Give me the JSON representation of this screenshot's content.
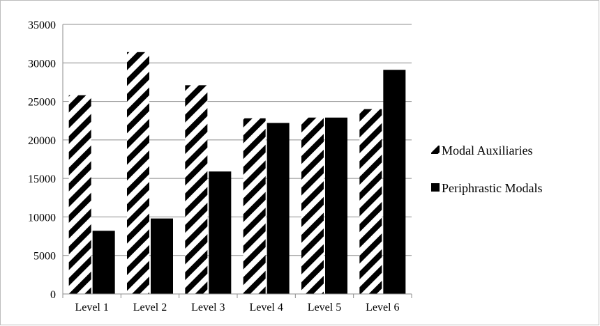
{
  "chart_data": {
    "type": "bar",
    "title": "",
    "xlabel": "",
    "ylabel": "",
    "categories": [
      "Level 1",
      "Level 2",
      "Level 3",
      "Level 4",
      "Level 5",
      "Level 6"
    ],
    "ylim": [
      0,
      35000
    ],
    "yticks": [
      0,
      5000,
      10000,
      15000,
      20000,
      25000,
      30000,
      35000
    ],
    "grid": true,
    "legend_position": "right",
    "series": [
      {
        "name": "Modal Auxiliaries",
        "values": [
          25800,
          31400,
          27100,
          22800,
          22900,
          24000
        ],
        "fill": "hatched",
        "color": "#000000"
      },
      {
        "name": "Periphrastic Modals",
        "values": [
          8200,
          9800,
          15900,
          22200,
          22900,
          29100
        ],
        "fill": "solid",
        "color": "#000000"
      }
    ]
  }
}
